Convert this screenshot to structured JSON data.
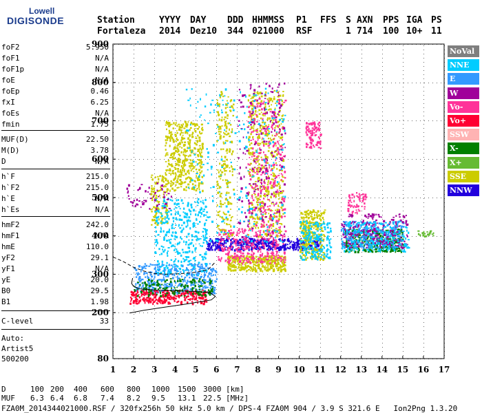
{
  "logo": {
    "line1": "Lowell",
    "line2": "DIGISONDE"
  },
  "header": {
    "labels": [
      "Station",
      "YYYY",
      "DAY",
      "DDD",
      "HHMMSS",
      "P1",
      "FFS",
      "S",
      "AXN",
      "PPS",
      "IGA",
      "PS"
    ],
    "values": [
      "Fortaleza",
      "2014",
      "Dez10",
      "344",
      "021000",
      "RSF",
      "1",
      "714",
      "100",
      "10+",
      "11"
    ]
  },
  "params": [
    {
      "k": "foF2",
      "v": "5.950"
    },
    {
      "k": "foF1",
      "v": "N/A"
    },
    {
      "k": "foF1p",
      "v": "N/A"
    },
    {
      "k": "foE",
      "v": "N/A"
    },
    {
      "k": "foEp",
      "v": "0.46"
    },
    {
      "k": "fxI",
      "v": "6.25"
    },
    {
      "k": "foEs",
      "v": "N/A"
    },
    {
      "k": "fmin",
      "v": "1.75"
    },
    {
      "k": "MUF(D)",
      "v": "22.50"
    },
    {
      "k": "M(D)",
      "v": "3.78"
    },
    {
      "k": "D",
      "v": "N/A"
    },
    {
      "k": "h`F",
      "v": "215.0"
    },
    {
      "k": "h`F2",
      "v": "215.0"
    },
    {
      "k": "h`E",
      "v": "N/A"
    },
    {
      "k": "h`Es",
      "v": "N/A"
    },
    {
      "k": "hmF2",
      "v": "242.0"
    },
    {
      "k": "hmF1",
      "v": "N/A"
    },
    {
      "k": "hmE",
      "v": "110.0"
    },
    {
      "k": "yF2",
      "v": "29.1"
    },
    {
      "k": "yF1",
      "v": "N/A"
    },
    {
      "k": "yE",
      "v": "20.0"
    },
    {
      "k": "B0",
      "v": "29.5"
    },
    {
      "k": "B1",
      "v": "1.98"
    },
    {
      "k": "C-level",
      "v": "33"
    }
  ],
  "auto": {
    "line1": "Auto:",
    "line2": "Artist5",
    "line3": "500200"
  },
  "legend": [
    {
      "label": "NoVal",
      "color": "#7f7f7f"
    },
    {
      "label": "NNE",
      "color": "#00ccff"
    },
    {
      "label": "E",
      "color": "#3399ff"
    },
    {
      "label": "W",
      "color": "#a0009a"
    },
    {
      "label": "Vo-",
      "color": "#ff3399"
    },
    {
      "label": "Vo+",
      "color": "#ff0033"
    },
    {
      "label": "SSW",
      "color": "#ffb3b3"
    },
    {
      "label": "X-",
      "color": "#008000"
    },
    {
      "label": "X+",
      "color": "#66bb33"
    },
    {
      "label": "SSE",
      "color": "#cccc00"
    },
    {
      "label": "NNW",
      "color": "#2200dd"
    }
  ],
  "mufTable": {
    "dLabel": "D",
    "dValues": [
      "100",
      "200",
      "400",
      "600",
      "800",
      "1000",
      "1500",
      "3000"
    ],
    "dUnit": "[km]",
    "mufLabel": "MUF",
    "mufValues": [
      "6.3",
      "6.4",
      "6.8",
      "7.4",
      "8.2",
      "9.5",
      "13.1",
      "22.5"
    ],
    "mufUnit": "[MHz]"
  },
  "footer": "FZA0M_2014344021000.RSF / 320fx256h 50 kHz 5.0 km / DPS-4 FZA0M 904 / 3.9 S 321.6 E   Ion2Png 1.3.20",
  "chart_data": {
    "type": "scatter",
    "xlim": [
      1,
      17
    ],
    "ylim": [
      80,
      900
    ],
    "xticks": [
      1,
      2,
      3,
      4,
      5,
      6,
      7,
      8,
      9,
      10,
      11,
      12,
      13,
      14,
      15,
      16,
      17
    ],
    "yticks": [
      80,
      200,
      300,
      400,
      500,
      600,
      700,
      800,
      900
    ],
    "grid": true,
    "clusters": [
      {
        "color": "#cccc00",
        "fx": [
          3.5,
          5.3
        ],
        "hy": [
          520,
          700
        ],
        "n": 420
      },
      {
        "color": "#cccc00",
        "fx": [
          2.8,
          3.6
        ],
        "hy": [
          430,
          560
        ],
        "n": 120
      },
      {
        "color": "#3399ff",
        "fx": [
          2.0,
          6.0
        ],
        "hy": [
          250,
          330
        ],
        "n": 420
      },
      {
        "color": "#00ccff",
        "fx": [
          3.0,
          5.5
        ],
        "hy": [
          300,
          500
        ],
        "n": 350
      },
      {
        "color": "#ff0033",
        "fx": [
          1.8,
          5.5
        ],
        "hy": [
          225,
          260
        ],
        "n": 300
      },
      {
        "color": "#008000",
        "fx": [
          2.0,
          5.8
        ],
        "hy": [
          245,
          290
        ],
        "n": 150
      },
      {
        "color": "#2200dd",
        "fx": [
          5.5,
          11.0
        ],
        "hy": [
          365,
          395
        ],
        "n": 450
      },
      {
        "color": "#cccc00",
        "fx": [
          6.5,
          9.3
        ],
        "hy": [
          310,
          350
        ],
        "n": 350
      },
      {
        "color": "#ff3399",
        "fx": [
          6.0,
          9.3
        ],
        "hy": [
          330,
          420
        ],
        "n": 300
      },
      {
        "color": "#cccc00",
        "fx": [
          7.5,
          9.2
        ],
        "hy": [
          400,
          780
        ],
        "n": 500
      },
      {
        "color": "#ff3399",
        "fx": [
          7.5,
          9.3
        ],
        "hy": [
          420,
          760
        ],
        "n": 280
      },
      {
        "color": "#a0009a",
        "fx": [
          7.0,
          9.3
        ],
        "hy": [
          380,
          800
        ],
        "n": 200
      },
      {
        "color": "#00ccff",
        "fx": [
          4.5,
          9.3
        ],
        "hy": [
          380,
          790
        ],
        "n": 250
      },
      {
        "color": "#cccc00",
        "fx": [
          6.0,
          6.8
        ],
        "hy": [
          400,
          780
        ],
        "n": 200
      },
      {
        "color": "#ff3399",
        "fx": [
          10.3,
          11.0
        ],
        "hy": [
          630,
          700
        ],
        "n": 90
      },
      {
        "color": "#cccc00",
        "fx": [
          10.0,
          11.2
        ],
        "hy": [
          340,
          470
        ],
        "n": 300
      },
      {
        "color": "#00ccff",
        "fx": [
          10.0,
          11.5
        ],
        "hy": [
          340,
          440
        ],
        "n": 180
      },
      {
        "color": "#008000",
        "fx": [
          12.2,
          15.0
        ],
        "hy": [
          360,
          420
        ],
        "n": 350
      },
      {
        "color": "#3399ff",
        "fx": [
          12.0,
          15.0
        ],
        "hy": [
          370,
          440
        ],
        "n": 300
      },
      {
        "color": "#a0009a",
        "fx": [
          12.0,
          15.2
        ],
        "hy": [
          370,
          460
        ],
        "n": 250
      },
      {
        "color": "#00ccff",
        "fx": [
          12.0,
          15.3
        ],
        "hy": [
          360,
          440
        ],
        "n": 200
      },
      {
        "color": "#ff3399",
        "fx": [
          12.3,
          13.2
        ],
        "hy": [
          460,
          520
        ],
        "n": 60
      },
      {
        "color": "#a0009a",
        "fx": [
          1.6,
          3.8
        ],
        "hy": [
          470,
          540
        ],
        "n": 60
      },
      {
        "color": "#66bb33",
        "fx": [
          15.5,
          16.5
        ],
        "hy": [
          400,
          415
        ],
        "n": 20
      }
    ],
    "profileSolid": [
      [
        1.8,
        199
      ],
      [
        2.5,
        206
      ],
      [
        3.5,
        214
      ],
      [
        4.5,
        222
      ],
      [
        5.3,
        229
      ],
      [
        5.75,
        233
      ],
      [
        5.95,
        242
      ],
      [
        5.7,
        252
      ],
      [
        5.0,
        255
      ],
      [
        4.0,
        257
      ],
      [
        3.0,
        259
      ],
      [
        2.3,
        262
      ],
      [
        2.0,
        268
      ],
      [
        1.9,
        276
      ],
      [
        1.95,
        290
      ]
    ],
    "profileDashed": [
      [
        1.0,
        345
      ],
      [
        1.5,
        333
      ],
      [
        2.0,
        318
      ],
      [
        2.5,
        308
      ],
      [
        3.0,
        302
      ],
      [
        3.5,
        300
      ],
      [
        4.2,
        301
      ],
      [
        5.0,
        305
      ],
      [
        5.6,
        312
      ],
      [
        5.95,
        332
      ]
    ]
  }
}
